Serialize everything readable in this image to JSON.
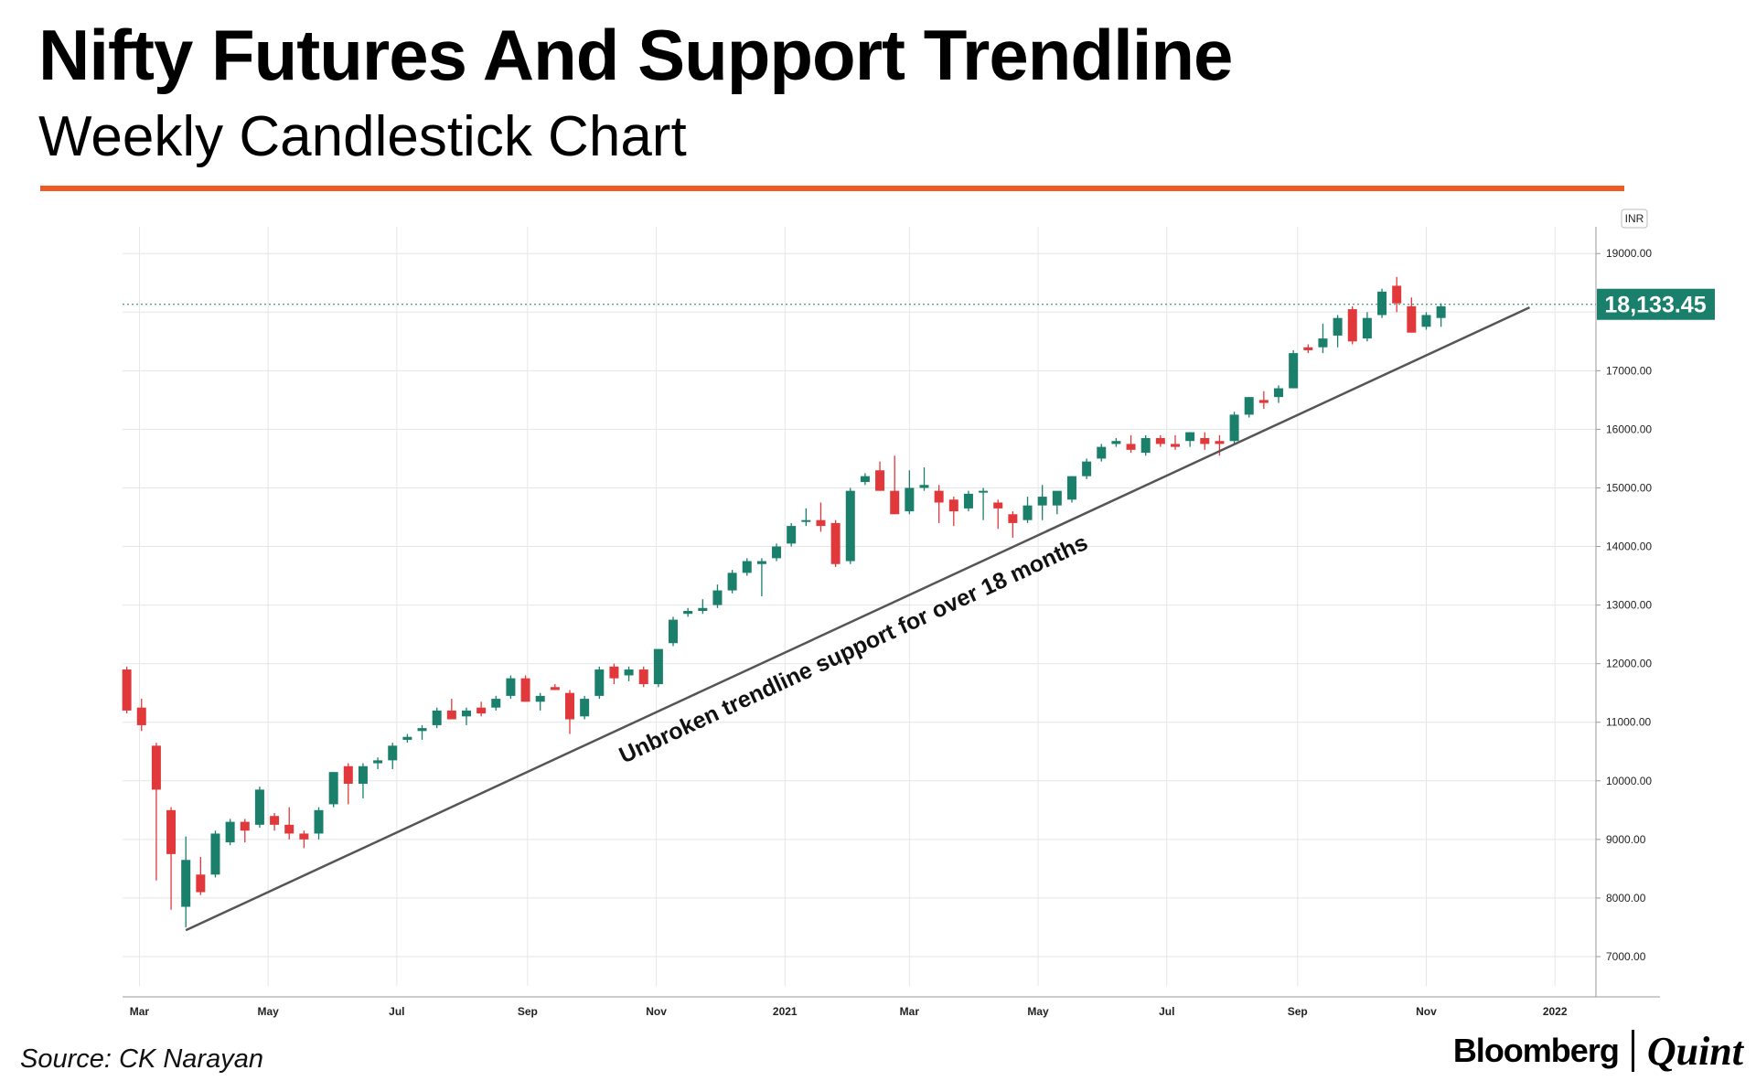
{
  "title": "Nifty Futures And Support Trendline",
  "subtitle": "Weekly Candlestick Chart",
  "source": "Source: CK Narayan",
  "brand": {
    "left": "Bloomberg",
    "right": "Quint"
  },
  "colors": {
    "accent_rule": "#ef5a24",
    "up": "#1a7f6b",
    "down": "#e0383b",
    "price_tag": "#1a7f6b",
    "trendline": "#555555",
    "grid": "#e6e6e6"
  },
  "chart_data": {
    "type": "candlestick",
    "currency": "INR",
    "last_price_label": "18,133.45",
    "last_price": 18133.45,
    "annotation": "Unbroken trendline support for over 18 months",
    "ylim": [
      6500,
      19300
    ],
    "y_ticks": [
      7000,
      8000,
      9000,
      10000,
      11000,
      12000,
      13000,
      14000,
      15000,
      16000,
      17000,
      19000
    ],
    "y_tick_labels": [
      "7000.00",
      "8000.00",
      "9000.00",
      "10000.00",
      "11000.00",
      "12000.00",
      "13000.00",
      "14000.00",
      "15000.00",
      "16000.00",
      "17000.00",
      "19000.00"
    ],
    "x_ticks": [
      {
        "label": "Mar",
        "date": "2020-03-01"
      },
      {
        "label": "May",
        "date": "2020-05-01"
      },
      {
        "label": "Jul",
        "date": "2020-07-01"
      },
      {
        "label": "Sep",
        "date": "2020-09-01"
      },
      {
        "label": "Nov",
        "date": "2020-11-01"
      },
      {
        "label": "2021",
        "date": "2021-01-01"
      },
      {
        "label": "Mar",
        "date": "2021-03-01"
      },
      {
        "label": "May",
        "date": "2021-05-01"
      },
      {
        "label": "Jul",
        "date": "2021-07-01"
      },
      {
        "label": "Sep",
        "date": "2021-09-01"
      },
      {
        "label": "Nov",
        "date": "2021-11-01"
      },
      {
        "label": "2022",
        "date": "2022-01-01"
      }
    ],
    "x_range": [
      "2020-02-22",
      "2022-01-20"
    ],
    "trendline": [
      {
        "date": "2020-03-23",
        "value": 7450
      },
      {
        "date": "2021-12-20",
        "value": 18080
      }
    ],
    "candles": [
      {
        "date": "2020-02-24",
        "open": 11900,
        "high": 11950,
        "low": 11150,
        "close": 11200
      },
      {
        "date": "2020-03-02",
        "open": 11250,
        "high": 11400,
        "low": 10850,
        "close": 10950
      },
      {
        "date": "2020-03-09",
        "open": 10600,
        "high": 10650,
        "low": 8300,
        "close": 9850
      },
      {
        "date": "2020-03-16",
        "open": 9500,
        "high": 9550,
        "low": 7800,
        "close": 8750
      },
      {
        "date": "2020-03-23",
        "open": 7850,
        "high": 9050,
        "low": 7500,
        "close": 8650
      },
      {
        "date": "2020-03-30",
        "open": 8400,
        "high": 8700,
        "low": 8050,
        "close": 8100
      },
      {
        "date": "2020-04-06",
        "open": 8400,
        "high": 9150,
        "low": 8350,
        "close": 9100
      },
      {
        "date": "2020-04-13",
        "open": 8950,
        "high": 9350,
        "low": 8900,
        "close": 9300
      },
      {
        "date": "2020-04-20",
        "open": 9300,
        "high": 9350,
        "low": 8950,
        "close": 9150
      },
      {
        "date": "2020-04-27",
        "open": 9250,
        "high": 9900,
        "low": 9200,
        "close": 9850
      },
      {
        "date": "2020-05-04",
        "open": 9400,
        "high": 9450,
        "low": 9150,
        "close": 9250
      },
      {
        "date": "2020-05-11",
        "open": 9250,
        "high": 9550,
        "low": 9000,
        "close": 9100
      },
      {
        "date": "2020-05-18",
        "open": 9100,
        "high": 9150,
        "low": 8850,
        "close": 9000
      },
      {
        "date": "2020-05-25",
        "open": 9100,
        "high": 9550,
        "low": 9000,
        "close": 9500
      },
      {
        "date": "2020-06-01",
        "open": 9600,
        "high": 10150,
        "low": 9550,
        "close": 10150
      },
      {
        "date": "2020-06-08",
        "open": 10250,
        "high": 10300,
        "low": 9600,
        "close": 9950
      },
      {
        "date": "2020-06-15",
        "open": 9950,
        "high": 10300,
        "low": 9700,
        "close": 10250
      },
      {
        "date": "2020-06-22",
        "open": 10300,
        "high": 10400,
        "low": 10200,
        "close": 10350
      },
      {
        "date": "2020-06-29",
        "open": 10350,
        "high": 10650,
        "low": 10200,
        "close": 10600
      },
      {
        "date": "2020-07-06",
        "open": 10700,
        "high": 10800,
        "low": 10650,
        "close": 10750
      },
      {
        "date": "2020-07-13",
        "open": 10850,
        "high": 10950,
        "low": 10700,
        "close": 10900
      },
      {
        "date": "2020-07-20",
        "open": 10950,
        "high": 11250,
        "low": 10900,
        "close": 11200
      },
      {
        "date": "2020-07-27",
        "open": 11200,
        "high": 11400,
        "low": 11050,
        "close": 11050
      },
      {
        "date": "2020-08-03",
        "open": 11100,
        "high": 11250,
        "low": 10950,
        "close": 11200
      },
      {
        "date": "2020-08-10",
        "open": 11250,
        "high": 11350,
        "low": 11100,
        "close": 11150
      },
      {
        "date": "2020-08-17",
        "open": 11250,
        "high": 11450,
        "low": 11200,
        "close": 11400
      },
      {
        "date": "2020-08-24",
        "open": 11450,
        "high": 11800,
        "low": 11400,
        "close": 11750
      },
      {
        "date": "2020-08-31",
        "open": 11750,
        "high": 11800,
        "low": 11350,
        "close": 11350
      },
      {
        "date": "2020-09-07",
        "open": 11350,
        "high": 11500,
        "low": 11200,
        "close": 11450
      },
      {
        "date": "2020-09-14",
        "open": 11600,
        "high": 11650,
        "low": 11550,
        "close": 11550
      },
      {
        "date": "2020-09-21",
        "open": 11500,
        "high": 11550,
        "low": 10800,
        "close": 11050
      },
      {
        "date": "2020-09-28",
        "open": 11100,
        "high": 11450,
        "low": 11050,
        "close": 11400
      },
      {
        "date": "2020-10-05",
        "open": 11450,
        "high": 11950,
        "low": 11400,
        "close": 11900
      },
      {
        "date": "2020-10-12",
        "open": 11950,
        "high": 12000,
        "low": 11650,
        "close": 11750
      },
      {
        "date": "2020-10-19",
        "open": 11800,
        "high": 11950,
        "low": 11700,
        "close": 11900
      },
      {
        "date": "2020-10-26",
        "open": 11900,
        "high": 11950,
        "low": 11600,
        "close": 11650
      },
      {
        "date": "2020-11-02",
        "open": 11650,
        "high": 12250,
        "low": 11600,
        "close": 12250
      },
      {
        "date": "2020-11-09",
        "open": 12350,
        "high": 12800,
        "low": 12300,
        "close": 12750
      },
      {
        "date": "2020-11-16",
        "open": 12850,
        "high": 12950,
        "low": 12800,
        "close": 12900
      },
      {
        "date": "2020-11-23",
        "open": 12900,
        "high": 13100,
        "low": 12850,
        "close": 12950
      },
      {
        "date": "2020-11-30",
        "open": 13000,
        "high": 13350,
        "low": 12950,
        "close": 13250
      },
      {
        "date": "2020-12-07",
        "open": 13250,
        "high": 13600,
        "low": 13200,
        "close": 13550
      },
      {
        "date": "2020-12-14",
        "open": 13550,
        "high": 13800,
        "low": 13500,
        "close": 13750
      },
      {
        "date": "2020-12-21",
        "open": 13700,
        "high": 13800,
        "low": 13150,
        "close": 13750
      },
      {
        "date": "2020-12-28",
        "open": 13800,
        "high": 14050,
        "low": 13750,
        "close": 14000
      },
      {
        "date": "2021-01-04",
        "open": 14050,
        "high": 14400,
        "low": 14000,
        "close": 14350
      },
      {
        "date": "2021-01-11",
        "open": 14450,
        "high": 14650,
        "low": 14350,
        "close": 14450
      },
      {
        "date": "2021-01-18",
        "open": 14450,
        "high": 14750,
        "low": 14250,
        "close": 14350
      },
      {
        "date": "2021-01-25",
        "open": 14400,
        "high": 14450,
        "low": 13650,
        "close": 13700
      },
      {
        "date": "2021-02-01",
        "open": 13750,
        "high": 15000,
        "low": 13700,
        "close": 14950
      },
      {
        "date": "2021-02-08",
        "open": 15100,
        "high": 15250,
        "low": 15050,
        "close": 15200
      },
      {
        "date": "2021-02-15",
        "open": 15300,
        "high": 15450,
        "low": 14950,
        "close": 14950
      },
      {
        "date": "2021-02-22",
        "open": 14950,
        "high": 15550,
        "low": 14550,
        "close": 14550
      },
      {
        "date": "2021-03-01",
        "open": 14600,
        "high": 15300,
        "low": 14550,
        "close": 15000
      },
      {
        "date": "2021-03-08",
        "open": 15000,
        "high": 15350,
        "low": 14950,
        "close": 15050
      },
      {
        "date": "2021-03-15",
        "open": 14950,
        "high": 15050,
        "low": 14400,
        "close": 14750
      },
      {
        "date": "2021-03-22",
        "open": 14800,
        "high": 14850,
        "low": 14350,
        "close": 14600
      },
      {
        "date": "2021-03-29",
        "open": 14650,
        "high": 14950,
        "low": 14600,
        "close": 14900
      },
      {
        "date": "2021-04-05",
        "open": 14950,
        "high": 15000,
        "low": 14450,
        "close": 14950
      },
      {
        "date": "2021-04-12",
        "open": 14750,
        "high": 14800,
        "low": 14300,
        "close": 14650
      },
      {
        "date": "2021-04-19",
        "open": 14550,
        "high": 14600,
        "low": 14150,
        "close": 14400
      },
      {
        "date": "2021-04-26",
        "open": 14450,
        "high": 14850,
        "low": 14400,
        "close": 14700
      },
      {
        "date": "2021-05-03",
        "open": 14700,
        "high": 15050,
        "low": 14450,
        "close": 14850
      },
      {
        "date": "2021-05-10",
        "open": 14700,
        "high": 14900,
        "low": 14550,
        "close": 14950
      },
      {
        "date": "2021-05-17",
        "open": 14800,
        "high": 15200,
        "low": 14750,
        "close": 15200
      },
      {
        "date": "2021-05-24",
        "open": 15200,
        "high": 15500,
        "low": 15150,
        "close": 15450
      },
      {
        "date": "2021-05-31",
        "open": 15500,
        "high": 15750,
        "low": 15450,
        "close": 15700
      },
      {
        "date": "2021-06-07",
        "open": 15750,
        "high": 15850,
        "low": 15700,
        "close": 15800
      },
      {
        "date": "2021-06-14",
        "open": 15750,
        "high": 15900,
        "low": 15600,
        "close": 15650
      },
      {
        "date": "2021-06-21",
        "open": 15600,
        "high": 15900,
        "low": 15550,
        "close": 15850
      },
      {
        "date": "2021-06-28",
        "open": 15850,
        "high": 15900,
        "low": 15700,
        "close": 15750
      },
      {
        "date": "2021-07-05",
        "open": 15750,
        "high": 15900,
        "low": 15650,
        "close": 15700
      },
      {
        "date": "2021-07-12",
        "open": 15800,
        "high": 15950,
        "low": 15700,
        "close": 15950
      },
      {
        "date": "2021-07-19",
        "open": 15850,
        "high": 15950,
        "low": 15650,
        "close": 15750
      },
      {
        "date": "2021-07-26",
        "open": 15800,
        "high": 15900,
        "low": 15550,
        "close": 15750
      },
      {
        "date": "2021-08-02",
        "open": 15800,
        "high": 16300,
        "low": 15750,
        "close": 16250
      },
      {
        "date": "2021-08-09",
        "open": 16250,
        "high": 16550,
        "low": 16200,
        "close": 16550
      },
      {
        "date": "2021-08-16",
        "open": 16500,
        "high": 16650,
        "low": 16350,
        "close": 16450
      },
      {
        "date": "2021-08-23",
        "open": 16550,
        "high": 16750,
        "low": 16450,
        "close": 16700
      },
      {
        "date": "2021-08-30",
        "open": 16700,
        "high": 17350,
        "low": 16700,
        "close": 17300
      },
      {
        "date": "2021-09-06",
        "open": 17400,
        "high": 17450,
        "low": 17300,
        "close": 17350
      },
      {
        "date": "2021-09-13",
        "open": 17400,
        "high": 17800,
        "low": 17300,
        "close": 17550
      },
      {
        "date": "2021-09-20",
        "open": 17600,
        "high": 17950,
        "low": 17400,
        "close": 17900
      },
      {
        "date": "2021-09-27",
        "open": 18050,
        "high": 18100,
        "low": 17450,
        "close": 17500
      },
      {
        "date": "2021-10-04",
        "open": 17550,
        "high": 18000,
        "low": 17500,
        "close": 17900
      },
      {
        "date": "2021-10-11",
        "open": 17950,
        "high": 18400,
        "low": 17900,
        "close": 18350
      },
      {
        "date": "2021-10-18",
        "open": 18450,
        "high": 18600,
        "low": 18000,
        "close": 18150
      },
      {
        "date": "2021-10-25",
        "open": 18100,
        "high": 18250,
        "low": 17650,
        "close": 17650
      },
      {
        "date": "2021-11-01",
        "open": 17750,
        "high": 18000,
        "low": 17700,
        "close": 17950
      },
      {
        "date": "2021-11-08",
        "open": 17900,
        "high": 18150,
        "low": 17750,
        "close": 18100
      }
    ]
  }
}
